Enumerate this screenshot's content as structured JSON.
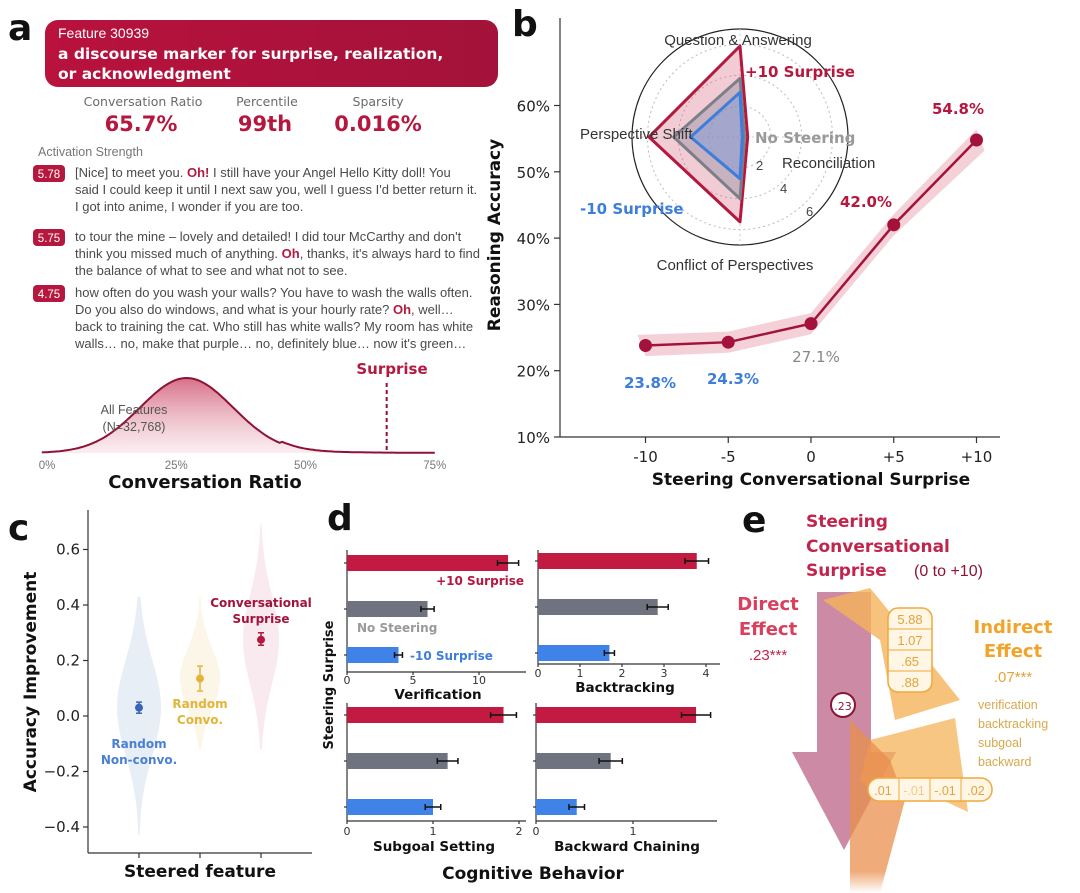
{
  "colors": {
    "red": "#b5183f",
    "blue": "#3d7ddb",
    "grey": "#7c7f88",
    "yellow": "#e2b43a",
    "orange": "#f3a94a",
    "band": "#f2c9d2"
  },
  "panel_a": {
    "letter": "a",
    "feature_id": "Feature 30939",
    "feature_desc_line1": "a discourse marker for surprise, realization,",
    "feature_desc_line2": "or acknowledgment",
    "stats": [
      {
        "label": "Conversation Ratio",
        "value": "65.7%"
      },
      {
        "label": "Percentile",
        "value": "99th"
      },
      {
        "label": "Sparsity",
        "value": "0.016%"
      }
    ],
    "activation_heading": "Activation Strength",
    "examples": [
      {
        "score": "5.78",
        "lines": [
          [
            {
              "t": "[Nice] to meet you. "
            },
            {
              "t": "Oh!",
              "hl": true
            },
            {
              "t": " I still have your Angel Hello Kitty doll! You"
            }
          ],
          [
            {
              "t": "said I could keep it until I next saw you, well I guess I'd better return it."
            }
          ],
          [
            {
              "t": "I got into anime, I wonder if you are too."
            }
          ]
        ]
      },
      {
        "score": "5.75",
        "lines": [
          [
            {
              "t": "to tour the mine – lovely and detailed! I did tour McCarthy and don't"
            }
          ],
          [
            {
              "t": "think you missed much of anything. "
            },
            {
              "t": "Oh",
              "hl": true
            },
            {
              "t": ", thanks, it's always hard to find"
            }
          ],
          [
            {
              "t": "the balance of what to see and what not to see."
            }
          ]
        ]
      },
      {
        "score": "4.75",
        "lines": [
          [
            {
              "t": "how often do you wash your walls? You have to wash the walls often."
            }
          ],
          [
            {
              "t": "Do you also do windows, and what is your hourly rate? "
            },
            {
              "t": "Oh",
              "hl": true
            },
            {
              "t": ", well…"
            }
          ],
          [
            {
              "t": "back to training the cat. Who still has white walls? My room has white"
            }
          ],
          [
            {
              "t": "walls… no, make that purple… no, definitely blue… now it's green…"
            }
          ]
        ]
      }
    ],
    "distribution": {
      "label_line1": "All Features",
      "label_line2": "(N=32,768)",
      "marker_label": "Surprise",
      "marker_value": 65.7,
      "mean": 27,
      "sd": 9,
      "xticks": [
        "0%",
        "25%",
        "50%",
        "75%"
      ],
      "xlabel": "Conversation Ratio"
    }
  },
  "chart_data": [
    {
      "panel": "b",
      "letter": "b",
      "type": "line",
      "x": [
        -10,
        -5,
        0,
        5,
        10
      ],
      "xticks": [
        "-10",
        "-5",
        "0",
        "+5",
        "+10"
      ],
      "values": [
        23.8,
        24.3,
        27.1,
        42.0,
        54.8
      ],
      "value_labels": [
        "23.8%",
        "24.3%",
        "27.1%",
        "42.0%",
        "54.8%"
      ],
      "band_halfwidth": 1.6,
      "yticks": [
        "10%",
        "20%",
        "30%",
        "40%",
        "50%",
        "60%"
      ],
      "ylim": [
        10,
        60
      ],
      "xlabel": "Steering Conversational Surprise",
      "ylabel": "Reasoning Accuracy"
    },
    {
      "panel": "b-inset",
      "type": "radar",
      "axes": [
        "Question & Answering",
        "Reconciliation",
        "Conflict of Perspectives",
        "Perspective Shift"
      ],
      "rings": [
        "2",
        "4",
        "6"
      ],
      "rmax": 7,
      "series": [
        {
          "name": "+10 Surprise",
          "values": [
            5.9,
            0.5,
            5.5,
            5.9
          ]
        },
        {
          "name": "No Steering",
          "values": [
            3.8,
            0.3,
            4.0,
            4.3
          ]
        },
        {
          "name": "-10 Surprise",
          "values": [
            2.9,
            0.15,
            2.7,
            3.2
          ]
        }
      ]
    },
    {
      "panel": "c",
      "letter": "c",
      "type": "violin",
      "categories": [
        "Random Non-convo.",
        "Random Convo.",
        "Conversational Surprise"
      ],
      "label_lines": [
        [
          "Random",
          "Non-convo."
        ],
        [
          "Random",
          "Convo."
        ],
        [
          "Conversational",
          "Surprise"
        ]
      ],
      "means": [
        0.03,
        0.135,
        0.275
      ],
      "err_low": [
        0.01,
        0.09,
        0.255
      ],
      "err_high": [
        0.05,
        0.18,
        0.3
      ],
      "ranges": [
        [
          -0.43,
          0.43
        ],
        [
          -0.12,
          0.43
        ],
        [
          -0.12,
          0.69
        ]
      ],
      "yticks": [
        "0.6",
        "0.4",
        "0.2",
        "0.0",
        "−0.2",
        "−0.4"
      ],
      "ylim": [
        -0.45,
        0.7
      ],
      "xlabel": "Steered feature",
      "ylabel": "Accuracy Improvement"
    },
    {
      "panel": "d",
      "letter": "d",
      "type": "bar",
      "series_names": [
        "+10 Surprise",
        "No Steering",
        "-10 Surprise"
      ],
      "ylabel": "Steering Surprise",
      "xlabel": "Cognitive Behavior",
      "subplots": [
        {
          "title": "Verification",
          "xticks": [
            "0",
            "5",
            "10"
          ],
          "tickvals": [
            0,
            5,
            10
          ],
          "values": [
            12.2,
            6.1,
            3.9
          ],
          "errors": [
            0.8,
            0.5,
            0.3
          ]
        },
        {
          "title": "Backtracking",
          "xticks": [
            "0",
            "1",
            "2",
            "3",
            "4"
          ],
          "tickvals": [
            0,
            1,
            2,
            3,
            4
          ],
          "values": [
            3.78,
            2.85,
            1.7
          ],
          "errors": [
            0.28,
            0.25,
            0.12
          ]
        },
        {
          "title": "Subgoal Setting",
          "xticks": [
            "0",
            "1",
            "2"
          ],
          "tickvals": [
            0,
            1,
            2
          ],
          "values": [
            1.82,
            1.17,
            1.0
          ],
          "errors": [
            0.15,
            0.12,
            0.09
          ]
        },
        {
          "title": "Backward Chaining",
          "xticks": [
            "0",
            "1"
          ],
          "tickvals": [
            0,
            1
          ],
          "values": [
            1.65,
            0.77,
            0.42
          ],
          "errors": [
            0.15,
            0.12,
            0.08
          ]
        }
      ]
    }
  ],
  "panel_e": {
    "letter": "e",
    "title_line1": "Steering",
    "title_line2": "Conversational",
    "title_line3": "Surprise",
    "title_range": "(0 to +10)",
    "direct_line1": "Direct",
    "direct_line2": "Effect",
    "direct_value": ".23***",
    "direct_path": ".23",
    "indirect_line1": "Indirect",
    "indirect_line2": "Effect",
    "indirect_value": ".07***",
    "mediators": [
      "verification",
      "backtracking",
      "subgoal",
      "backward"
    ],
    "a_paths": [
      "5.88",
      "1.07",
      ".65",
      ".88"
    ],
    "b_paths": [
      ".01",
      "-.01",
      "-.01",
      ".02"
    ]
  }
}
